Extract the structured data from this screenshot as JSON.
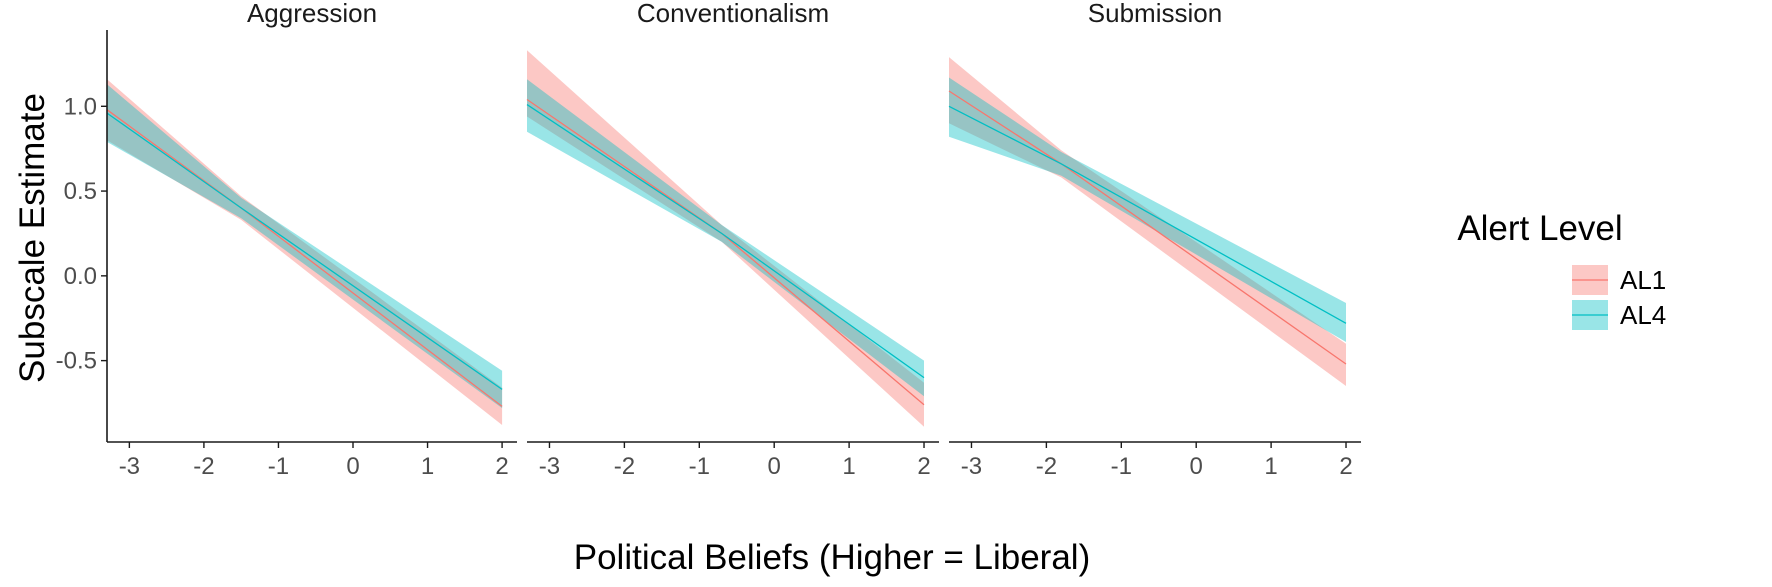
{
  "chart_data": {
    "type": "line",
    "xlabel": "Political Beliefs (Higher = Liberal)",
    "ylabel": "Subscale Estimate",
    "xlim": [
      -3.3,
      2.2
    ],
    "ylim": [
      -0.98,
      1.45
    ],
    "x_ticks": [
      -3,
      -2,
      -1,
      0,
      1,
      2
    ],
    "x_tick_labels": [
      "-3",
      "-2",
      "-1",
      "0",
      "1",
      "2"
    ],
    "y_ticks": [
      -0.5,
      0.0,
      0.5,
      1.0
    ],
    "y_tick_labels": [
      "-0.5",
      "0.0",
      "0.5",
      "1.0"
    ],
    "grid": false,
    "legend": {
      "title": "Alert Level",
      "placement": "right",
      "entries": [
        "AL1",
        "AL4"
      ]
    },
    "colors": {
      "AL1_line": "#F8766D",
      "AL1_fill": "#F8766D",
      "AL4_line": "#00BFC4",
      "AL4_fill": "#00BFC4",
      "axis": "#1a1a1a"
    },
    "panels": [
      {
        "title": "Aggression",
        "series": [
          {
            "name": "AL1",
            "x": [
              -3.3,
              -1.5,
              2.0
            ],
            "y": [
              0.98,
              0.4,
              -0.77
            ],
            "lower": [
              0.8,
              0.33,
              -0.88
            ],
            "upper": [
              1.16,
              0.47,
              -0.66
            ]
          },
          {
            "name": "AL4",
            "x": [
              -3.3,
              -1.5,
              2.0
            ],
            "y": [
              0.96,
              0.4,
              -0.67
            ],
            "lower": [
              0.79,
              0.34,
              -0.78
            ],
            "upper": [
              1.13,
              0.46,
              -0.56
            ]
          }
        ]
      },
      {
        "title": "Conventionalism",
        "series": [
          {
            "name": "AL1",
            "x": [
              -3.3,
              -0.7,
              2.0
            ],
            "y": [
              1.04,
              0.25,
              -0.76
            ],
            "lower": [
              0.94,
              0.2,
              -0.89
            ],
            "upper": [
              1.33,
              0.3,
              -0.63
            ]
          },
          {
            "name": "AL4",
            "x": [
              -3.3,
              -0.7,
              2.0
            ],
            "y": [
              1.01,
              0.25,
              -0.6
            ],
            "lower": [
              0.85,
              0.2,
              -0.71
            ],
            "upper": [
              1.16,
              0.3,
              -0.5
            ]
          }
        ]
      },
      {
        "title": "Submission",
        "series": [
          {
            "name": "AL1",
            "x": [
              -3.3,
              -1.8,
              2.0
            ],
            "y": [
              1.09,
              0.66,
              -0.52
            ],
            "lower": [
              0.9,
              0.58,
              -0.65
            ],
            "upper": [
              1.29,
              0.74,
              -0.4
            ]
          },
          {
            "name": "AL4",
            "x": [
              -3.3,
              -1.8,
              2.0
            ],
            "y": [
              1.0,
              0.66,
              -0.28
            ],
            "lower": [
              0.82,
              0.59,
              -0.39
            ],
            "upper": [
              1.17,
              0.73,
              -0.16
            ]
          }
        ]
      }
    ]
  }
}
